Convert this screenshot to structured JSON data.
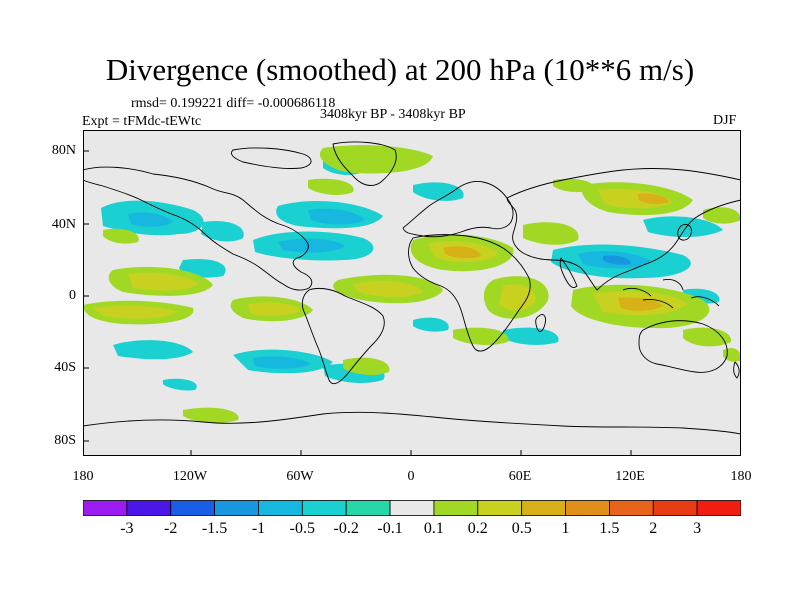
{
  "title": "Divergence (smoothed) at 200 hPa (10**6 m/s)",
  "stats": "rmsd= 0.199221 diff= -0.000686118",
  "experiment": "Expt = tFMdc-tEWtc",
  "period": "3408kyr BP - 3408kyr BP",
  "season": "DJF",
  "lat_labels": [
    "80N",
    "40N",
    "0",
    "40S",
    "80S"
  ],
  "lon_labels": [
    "180",
    "120W",
    "60W",
    "0",
    "60E",
    "120E",
    "180"
  ],
  "colorbar": {
    "labels": [
      "-3",
      "-2",
      "-1.5",
      "-1",
      "-0.5",
      "-0.2",
      "-0.1",
      "0.1",
      "0.2",
      "0.5",
      "1",
      "1.5",
      "2",
      "3"
    ],
    "colors": [
      "#9b1cf0",
      "#4b16e8",
      "#1a5ee8",
      "#1896e0",
      "#16b8e0",
      "#1ad0d0",
      "#26d8a8",
      "#e8e8e8",
      "#a0d824",
      "#c8d020",
      "#d8b018",
      "#e0901a",
      "#e86418",
      "#e83c14",
      "#f01e10"
    ]
  },
  "map_colors": {
    "background": "#e8e8e8",
    "coast": "#000000"
  }
}
